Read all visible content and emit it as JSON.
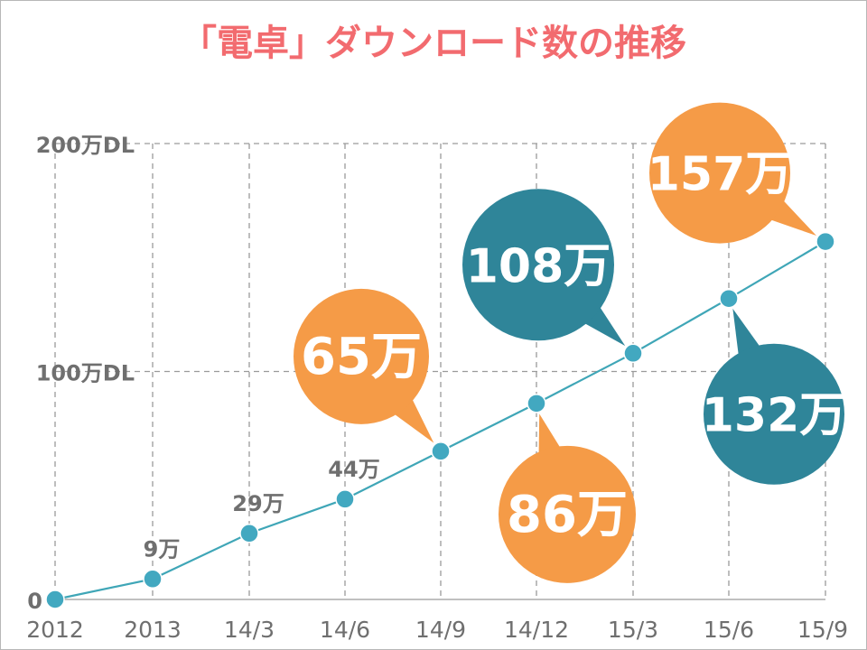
{
  "colors": {
    "title": "#f26b6f",
    "line": "#3fa6b7",
    "point": "#42a8c0",
    "grid": "#9a9a9a",
    "axis_text": "#6f6f6f",
    "orange": "#f59b47",
    "teal": "#2f8599",
    "bubble_text": "#ffffff"
  },
  "chart_data": {
    "type": "line",
    "title": "「電卓」ダウンロード数の推移",
    "categories": [
      "2012",
      "2013",
      "14/3",
      "14/6",
      "14/9",
      "14/12",
      "15/3",
      "15/6",
      "15/9"
    ],
    "values": [
      0,
      9,
      29,
      44,
      65,
      86,
      108,
      132,
      157
    ],
    "value_unit": "万DL",
    "ylim": [
      0,
      200
    ],
    "yticks": [
      0,
      100,
      200
    ],
    "ytick_labels": [
      "0",
      "100万DL",
      "200万DL"
    ],
    "grid": true,
    "data_labels": [
      {
        "index": 1,
        "text": "9万",
        "style": "plain"
      },
      {
        "index": 2,
        "text": "29万",
        "style": "plain"
      },
      {
        "index": 3,
        "text": "44万",
        "style": "plain"
      },
      {
        "index": 4,
        "text": "65万",
        "style": "bubble",
        "color": "orange",
        "pos": "above-left"
      },
      {
        "index": 5,
        "text": "86万",
        "style": "bubble",
        "color": "orange",
        "pos": "below"
      },
      {
        "index": 6,
        "text": "108万",
        "style": "bubble",
        "color": "teal",
        "pos": "above-left"
      },
      {
        "index": 7,
        "text": "132万",
        "style": "bubble",
        "color": "teal",
        "pos": "below-right"
      },
      {
        "index": 8,
        "text": "157万",
        "style": "bubble",
        "color": "orange",
        "pos": "above-left"
      }
    ]
  }
}
